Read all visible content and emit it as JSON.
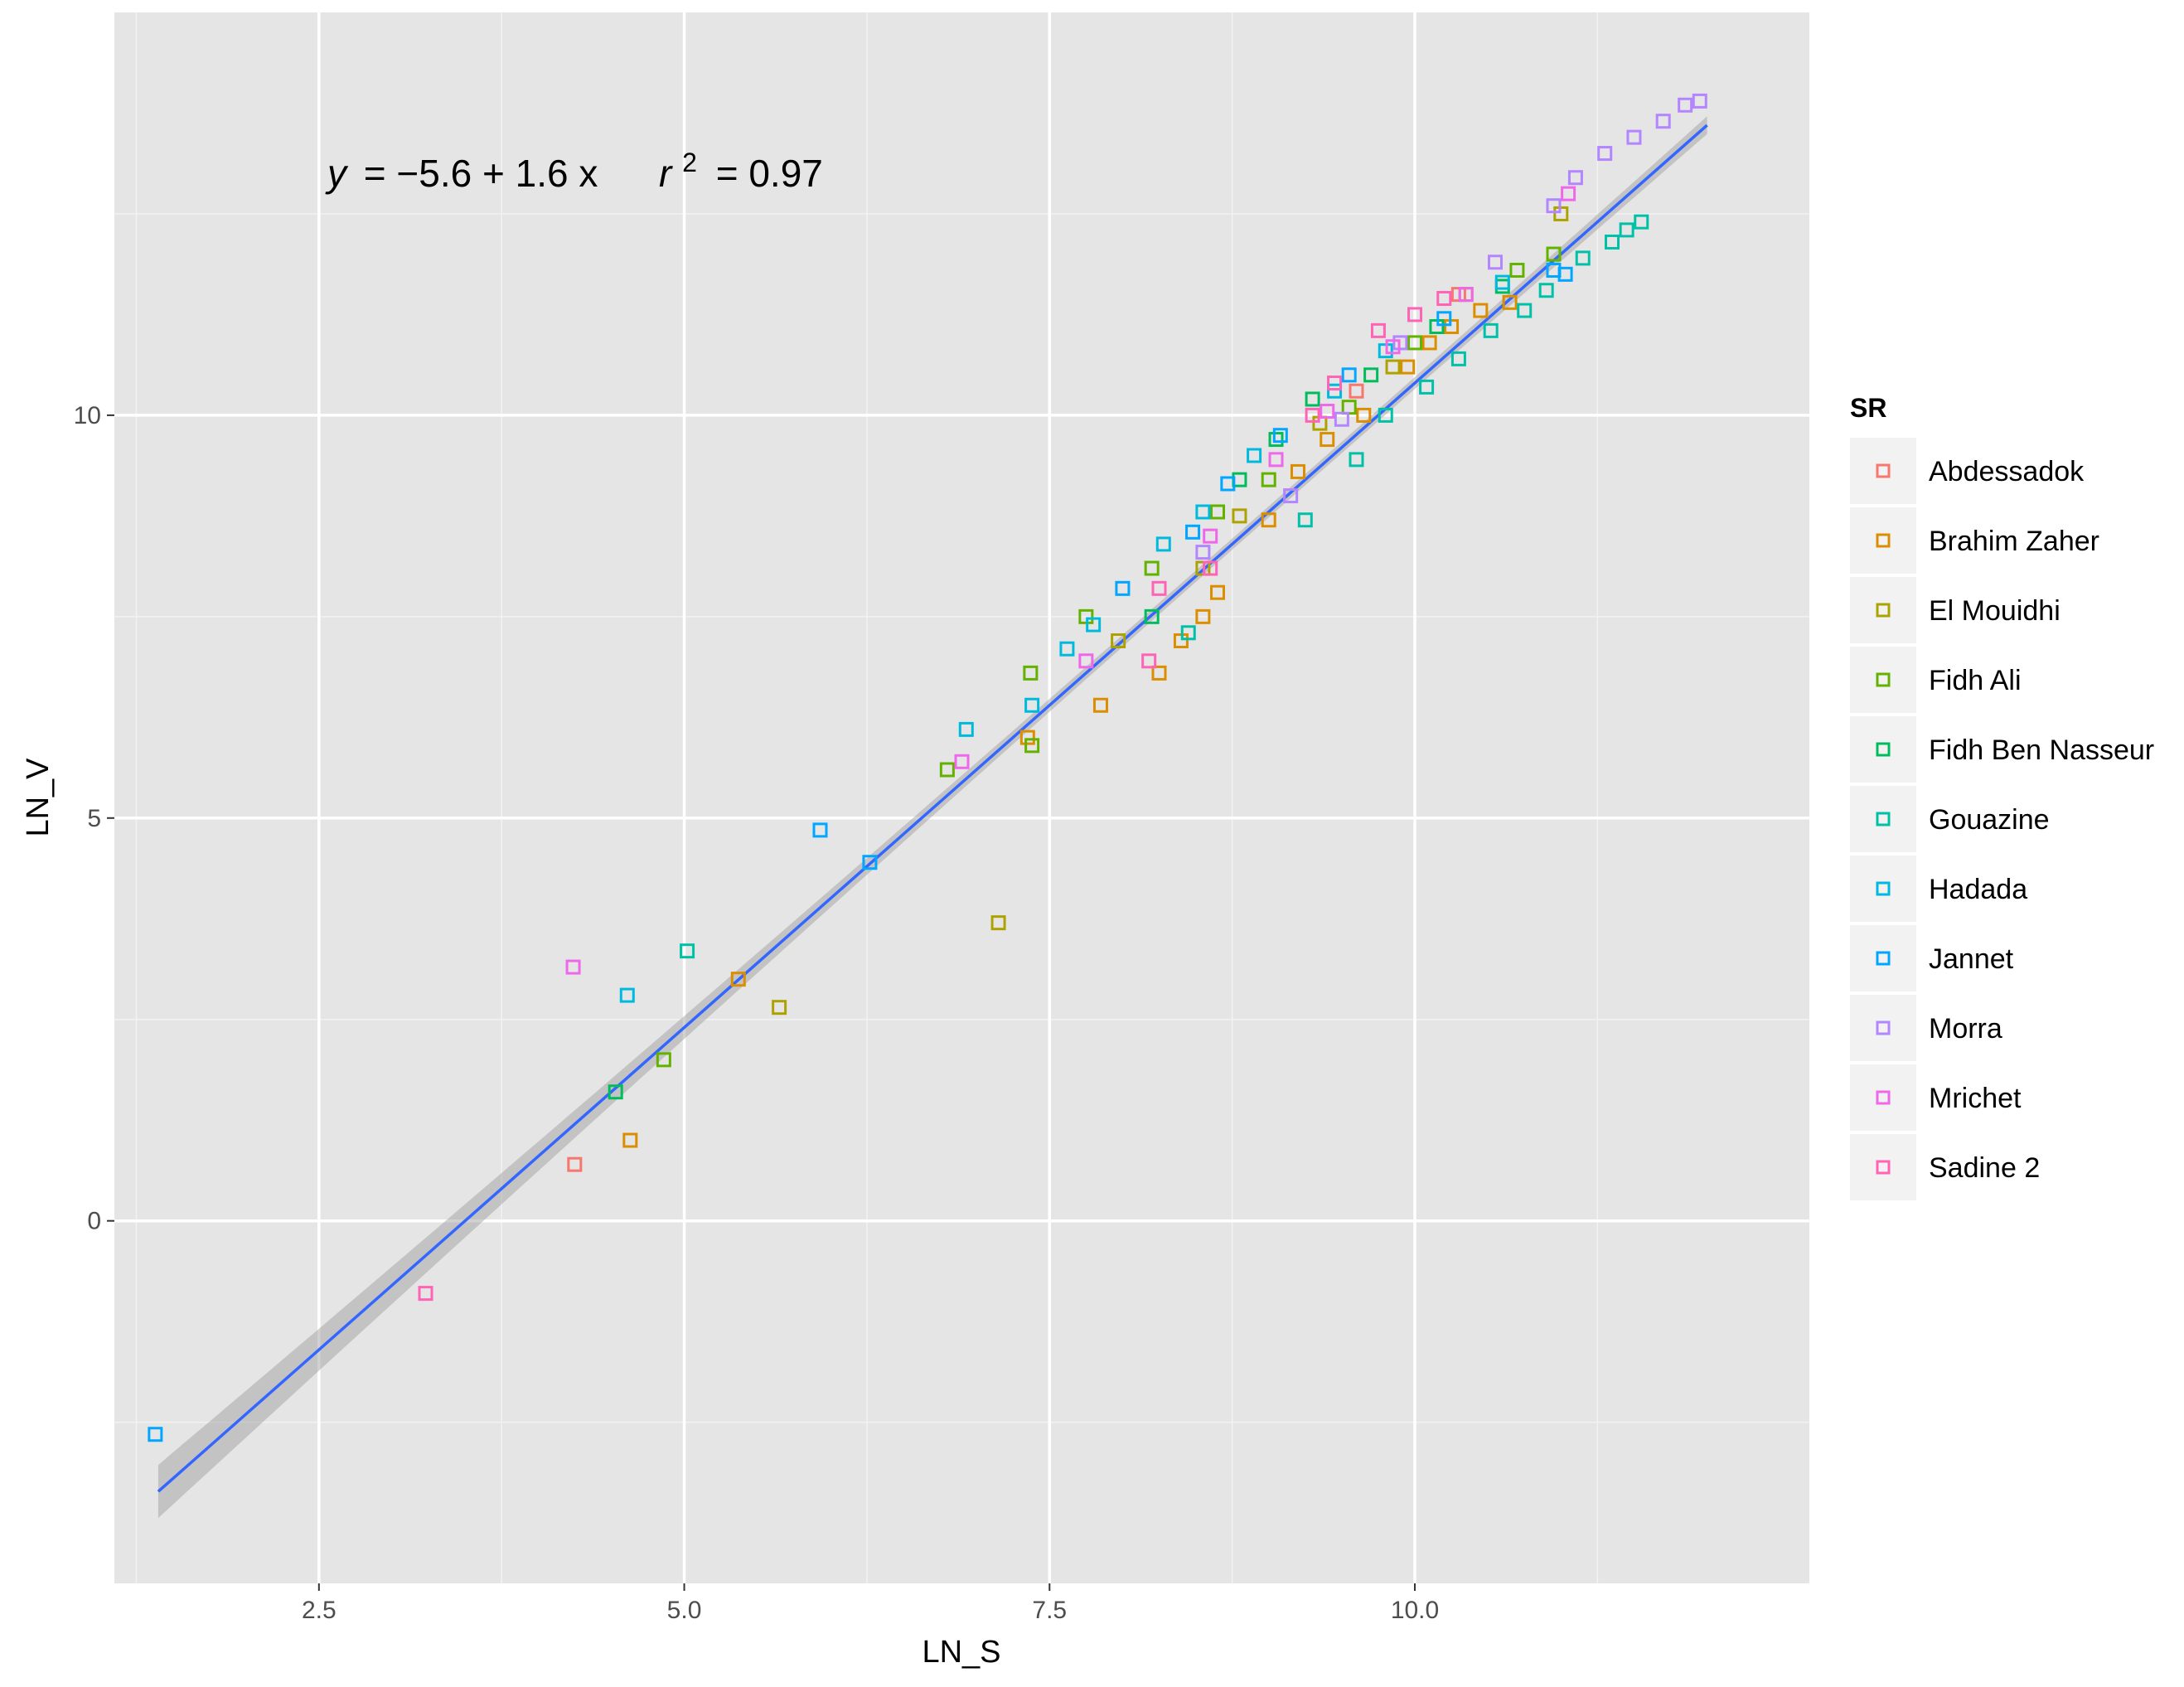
{
  "chart_data": {
    "type": "scatter",
    "title": "",
    "xlabel": "LN_S",
    "ylabel": "LN_V",
    "xlim": [
      1.1,
      12.7
    ],
    "ylim": [
      -4.5,
      15.0
    ],
    "x_ticks": [
      2.5,
      5.0,
      7.5,
      10.0
    ],
    "x_tick_labels": [
      "2.5",
      "5.0",
      "7.5",
      "10.0"
    ],
    "y_ticks": [
      0,
      5,
      10
    ],
    "y_tick_labels": [
      "0",
      "5",
      "10"
    ],
    "grid": true,
    "legend": {
      "title": "SR",
      "position": "right"
    },
    "annotation": {
      "y_label": "y",
      "equation_rest": "= −5.6 + 1.6 x",
      "r_label": "r",
      "r_exp": "2",
      "r2_rest": "= 0.97"
    },
    "fit": {
      "intercept": -5.6,
      "slope": 1.6,
      "x_range": [
        1.4,
        12.0
      ],
      "color": "#3366ff",
      "band_color": "#999999"
    },
    "series": [
      {
        "name": "Abdessadok",
        "color": "#F8766D",
        "points": [
          [
            4.25,
            0.7
          ],
          [
            9.6,
            10.3
          ],
          [
            10.3,
            11.5
          ]
        ]
      },
      {
        "name": "Brahim Zaher",
        "color": "#DB8E00",
        "points": [
          [
            4.63,
            1.0
          ],
          [
            5.37,
            3.0
          ],
          [
            7.35,
            6.0
          ],
          [
            7.85,
            6.4
          ],
          [
            8.25,
            6.8
          ],
          [
            8.4,
            7.2
          ],
          [
            8.55,
            7.5
          ],
          [
            8.65,
            7.8
          ],
          [
            9.0,
            8.7
          ],
          [
            9.2,
            9.3
          ],
          [
            9.4,
            9.7
          ],
          [
            9.65,
            10.0
          ],
          [
            9.95,
            10.6
          ],
          [
            10.1,
            10.9
          ],
          [
            10.25,
            11.1
          ],
          [
            10.45,
            11.3
          ],
          [
            10.65,
            11.4
          ]
        ]
      },
      {
        "name": "El Mouidhi",
        "color": "#AEA200",
        "points": [
          [
            5.65,
            2.65
          ],
          [
            7.15,
            3.7
          ],
          [
            7.97,
            7.2
          ],
          [
            8.55,
            8.1
          ],
          [
            8.8,
            8.75
          ],
          [
            9.35,
            9.9
          ],
          [
            9.85,
            10.6
          ],
          [
            10.35,
            11.5
          ],
          [
            11.0,
            12.5
          ]
        ]
      },
      {
        "name": "Fidh Ali",
        "color": "#64B200",
        "points": [
          [
            4.86,
            2.0
          ],
          [
            6.8,
            5.6
          ],
          [
            7.37,
            6.8
          ],
          [
            7.38,
            5.9
          ],
          [
            7.75,
            7.5
          ],
          [
            8.2,
            8.1
          ],
          [
            8.65,
            8.8
          ],
          [
            9.0,
            9.2
          ],
          [
            9.55,
            10.1
          ],
          [
            10.0,
            10.9
          ],
          [
            10.7,
            11.8
          ],
          [
            10.95,
            12.0
          ]
        ]
      },
      {
        "name": "Fidh Ben Nasseur",
        "color": "#00BD5C",
        "points": [
          [
            4.53,
            1.6
          ],
          [
            8.2,
            7.5
          ],
          [
            8.8,
            9.2
          ],
          [
            9.05,
            9.7
          ],
          [
            9.3,
            10.2
          ],
          [
            9.7,
            10.5
          ],
          [
            10.15,
            11.1
          ],
          [
            10.6,
            11.6
          ]
        ]
      },
      {
        "name": "Gouazine",
        "color": "#00C1A7",
        "points": [
          [
            5.02,
            3.35
          ],
          [
            8.45,
            7.3
          ],
          [
            9.25,
            8.7
          ],
          [
            9.6,
            9.45
          ],
          [
            9.8,
            10.0
          ],
          [
            10.08,
            10.35
          ],
          [
            10.3,
            10.7
          ],
          [
            10.52,
            11.05
          ],
          [
            10.75,
            11.3
          ],
          [
            10.9,
            11.55
          ],
          [
            11.15,
            11.95
          ],
          [
            11.35,
            12.15
          ],
          [
            11.45,
            12.3
          ],
          [
            11.55,
            12.4
          ]
        ]
      },
      {
        "name": "Hadada",
        "color": "#00BADE",
        "points": [
          [
            4.61,
            2.8
          ],
          [
            6.93,
            6.1
          ],
          [
            7.38,
            6.4
          ],
          [
            7.62,
            7.1
          ],
          [
            7.8,
            7.4
          ],
          [
            8.28,
            8.4
          ],
          [
            8.55,
            8.8
          ],
          [
            8.9,
            9.5
          ],
          [
            9.45,
            10.3
          ],
          [
            9.8,
            10.8
          ],
          [
            10.6,
            11.65
          ]
        ]
      },
      {
        "name": "Jannet",
        "color": "#00A6FF",
        "points": [
          [
            1.38,
            -2.65
          ],
          [
            5.93,
            4.85
          ],
          [
            6.27,
            4.45
          ],
          [
            8.0,
            7.85
          ],
          [
            8.48,
            8.55
          ],
          [
            8.72,
            9.15
          ],
          [
            9.08,
            9.75
          ],
          [
            9.55,
            10.5
          ],
          [
            10.2,
            11.2
          ],
          [
            10.95,
            11.8
          ],
          [
            11.03,
            11.75
          ]
        ]
      },
      {
        "name": "Morra",
        "color": "#B385FF",
        "points": [
          [
            8.55,
            8.3
          ],
          [
            9.15,
            9.0
          ],
          [
            9.5,
            9.95
          ],
          [
            9.9,
            10.9
          ],
          [
            10.55,
            11.9
          ],
          [
            10.95,
            12.6
          ],
          [
            11.1,
            12.95
          ],
          [
            11.3,
            13.25
          ],
          [
            11.5,
            13.45
          ],
          [
            11.7,
            13.65
          ],
          [
            11.85,
            13.85
          ],
          [
            11.95,
            13.9
          ]
        ]
      },
      {
        "name": "Mrichet",
        "color": "#EF67EB",
        "points": [
          [
            4.24,
            3.15
          ],
          [
            6.9,
            5.7
          ],
          [
            7.75,
            6.95
          ],
          [
            8.6,
            8.5
          ],
          [
            9.05,
            9.45
          ],
          [
            9.4,
            10.05
          ],
          [
            9.85,
            10.85
          ],
          [
            10.35,
            11.5
          ],
          [
            11.05,
            12.75
          ]
        ]
      },
      {
        "name": "Sadine 2",
        "color": "#FF63B6",
        "points": [
          [
            3.23,
            -0.9
          ],
          [
            8.18,
            6.95
          ],
          [
            8.25,
            7.85
          ],
          [
            8.6,
            8.1
          ],
          [
            9.3,
            10.0
          ],
          [
            9.45,
            10.4
          ],
          [
            9.75,
            11.05
          ],
          [
            10.0,
            11.25
          ],
          [
            10.2,
            11.45
          ]
        ]
      }
    ]
  }
}
